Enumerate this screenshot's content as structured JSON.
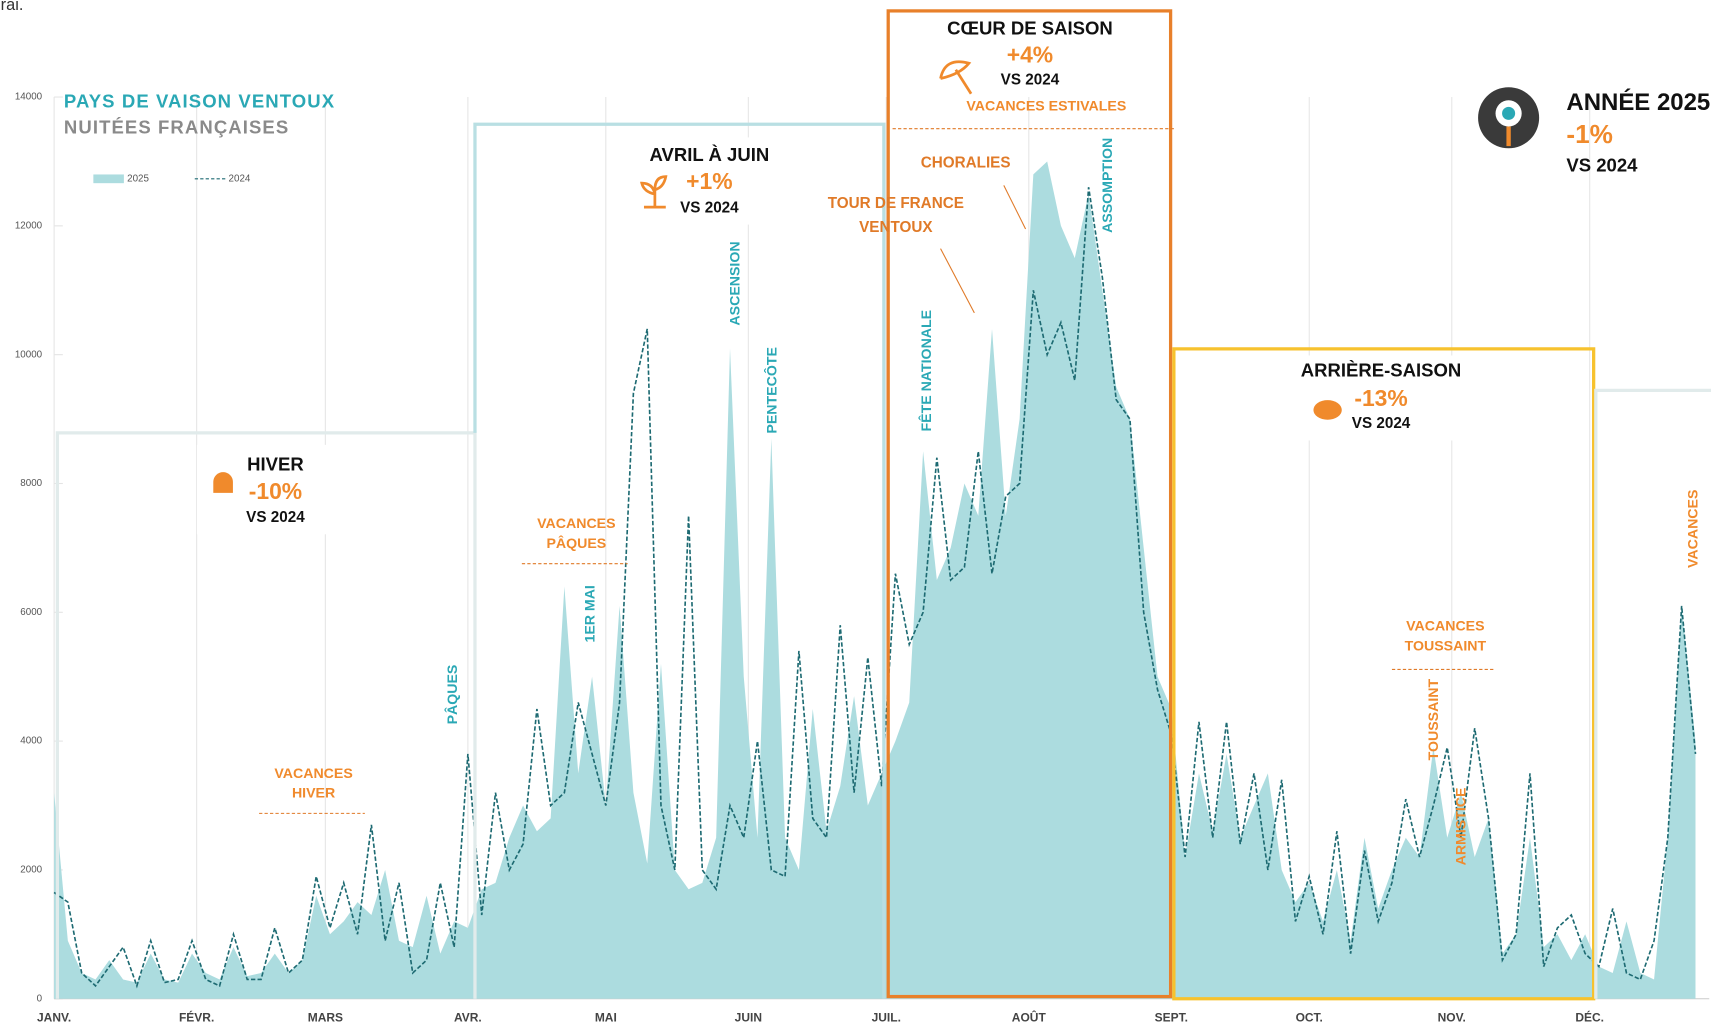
{
  "caption_fragment": "rai.",
  "chart_data": {
    "type": "area",
    "title": "PAYS DE VAISON VENTOUX",
    "subtitle": "NUITÉES FRANÇAISES",
    "x": [
      1,
      4,
      7,
      10,
      13,
      16,
      19,
      22,
      25,
      28,
      31,
      34,
      37,
      40,
      43,
      46,
      49,
      52,
      55,
      58,
      61,
      64,
      67,
      70,
      73,
      76,
      79,
      82,
      85,
      88,
      91,
      94,
      97,
      100,
      103,
      106,
      109,
      112,
      115,
      118,
      121,
      124,
      127,
      130,
      133,
      136,
      139,
      142,
      145,
      148,
      151,
      154,
      157,
      160,
      163,
      166,
      169,
      172,
      175,
      178,
      181,
      184,
      187,
      190,
      193,
      196,
      199,
      202,
      205,
      208,
      211,
      214,
      217,
      220,
      223,
      226,
      229,
      232,
      235,
      238,
      241,
      244,
      247,
      250,
      253,
      256,
      259,
      262,
      265,
      268,
      271,
      274,
      277,
      280,
      283,
      286,
      289,
      292,
      295,
      298,
      301,
      304,
      307,
      310,
      313,
      316,
      319,
      322,
      325,
      328,
      331,
      334,
      337,
      340,
      343,
      346,
      349,
      352,
      355,
      358
    ],
    "xlim": [
      1,
      361
    ],
    "xticks": [
      {
        "value": 1,
        "label": "JANV."
      },
      {
        "value": 32,
        "label": "FÉVR."
      },
      {
        "value": 60,
        "label": "MARS"
      },
      {
        "value": 91,
        "label": "AVR."
      },
      {
        "value": 121,
        "label": "MAI"
      },
      {
        "value": 152,
        "label": "JUIN"
      },
      {
        "value": 182,
        "label": "JUIL."
      },
      {
        "value": 213,
        "label": "AOÛT"
      },
      {
        "value": 244,
        "label": "SEPT."
      },
      {
        "value": 274,
        "label": "OCT."
      },
      {
        "value": 305,
        "label": "NOV."
      },
      {
        "value": 335,
        "label": "DÉC."
      }
    ],
    "ylim": [
      0,
      14000
    ],
    "yticks": [
      0,
      2000,
      4000,
      6000,
      8000,
      10000,
      12000,
      14000
    ],
    "grid": true,
    "series": [
      {
        "name": "2025",
        "color": "#acdcdf",
        "style": "area",
        "values": [
          3200,
          900,
          400,
          300,
          600,
          300,
          250,
          700,
          300,
          250,
          700,
          400,
          300,
          800,
          350,
          400,
          700,
          400,
          600,
          1600,
          1000,
          1200,
          1500,
          1300,
          2000,
          900,
          800,
          1600,
          700,
          1200,
          1100,
          1700,
          1800,
          2500,
          3000,
          2600,
          2800,
          6400,
          3500,
          5000,
          3000,
          6100,
          3200,
          2100,
          5200,
          2000,
          1700,
          1800,
          2500,
          10100,
          5000,
          2500,
          8700,
          2500,
          2000,
          4500,
          2600,
          3300,
          4700,
          3000,
          3500,
          4000,
          4600,
          8500,
          6500,
          7000,
          8000,
          7500,
          10400,
          7500,
          9000,
          12800,
          13000,
          12000,
          11500,
          12500,
          11000,
          9500,
          9000,
          7000,
          5000,
          4500,
          2200,
          3500,
          2600,
          3800,
          2500,
          3000,
          3500,
          2000,
          1500,
          1800,
          1200,
          2000,
          900,
          2500,
          1400,
          2000,
          2500,
          2200,
          3900,
          2500,
          3200,
          2200,
          2800,
          700,
          1000,
          2500,
          800,
          1000,
          600,
          1000,
          500,
          400,
          1200,
          400,
          300,
          2500,
          6100,
          4000
        ]
      },
      {
        "name": "2024",
        "color": "#1d6a72",
        "style": "dashed",
        "values": [
          1650,
          1500,
          400,
          200,
          500,
          800,
          200,
          900,
          250,
          300,
          900,
          300,
          200,
          1000,
          300,
          300,
          1100,
          400,
          600,
          1900,
          1100,
          1800,
          1000,
          2700,
          900,
          1800,
          400,
          600,
          1800,
          800,
          3800,
          1300,
          3200,
          2000,
          2400,
          4500,
          3000,
          3200,
          4600,
          3800,
          3000,
          4600,
          9400,
          10400,
          3000,
          2000,
          7500,
          2000,
          1700,
          3000,
          2500,
          4000,
          2000,
          1900,
          5400,
          2800,
          2500,
          5800,
          3200,
          5300,
          3300,
          6600,
          5500,
          6000,
          8400,
          6500,
          6700,
          8500,
          6600,
          7800,
          8000,
          11000,
          10000,
          10500,
          9600,
          12600,
          11200,
          9300,
          9000,
          6000,
          4800,
          4100,
          2200,
          4300,
          2500,
          4300,
          2400,
          3500,
          2000,
          3400,
          1200,
          1900,
          1000,
          2600,
          700,
          2300,
          1200,
          1800,
          3100,
          2200,
          3000,
          3900,
          2500,
          4200,
          2800,
          600,
          1000,
          3500,
          500,
          1100,
          1300,
          700,
          500,
          1400,
          400,
          300,
          900,
          2500,
          6100,
          3800
        ]
      }
    ]
  },
  "seasons": [
    {
      "name": "HIVER",
      "change": "-10%",
      "comparison": "VS 2024"
    },
    {
      "name": "AVRIL À JUIN",
      "change": "+1%",
      "comparison": "VS 2024"
    },
    {
      "name": "CŒUR DE SAISON",
      "change": "+4%",
      "comparison": "VS 2024"
    },
    {
      "name": "ARRIÈRE-SAISON",
      "change": "-13%",
      "comparison": "VS 2024"
    }
  ],
  "holidays": [
    "PÂQUES",
    "1ER MAI",
    "ASCENSION",
    "PENTECÔTE",
    "FÊTE NATIONALE",
    "ASSOMPTION",
    "TOUSSAINT",
    "ARMISTICE",
    "VACANCES"
  ],
  "events": [
    {
      "lines": [
        "VACANCES",
        "HIVER"
      ]
    },
    {
      "lines": [
        "VACANCES",
        "PÂQUES"
      ]
    },
    {
      "lines": [
        "TOUR DE FRANCE",
        "VENTOUX"
      ]
    },
    {
      "lines": [
        "CHORALIES"
      ]
    },
    {
      "lines": [
        "VACANCES ESTIVALES"
      ]
    },
    {
      "lines": [
        "VACANCES",
        "TOUSSAINT"
      ]
    }
  ],
  "year_summary": {
    "title": "ANNÉE 2025",
    "change": "-1%",
    "comparison": "VS 2024"
  }
}
